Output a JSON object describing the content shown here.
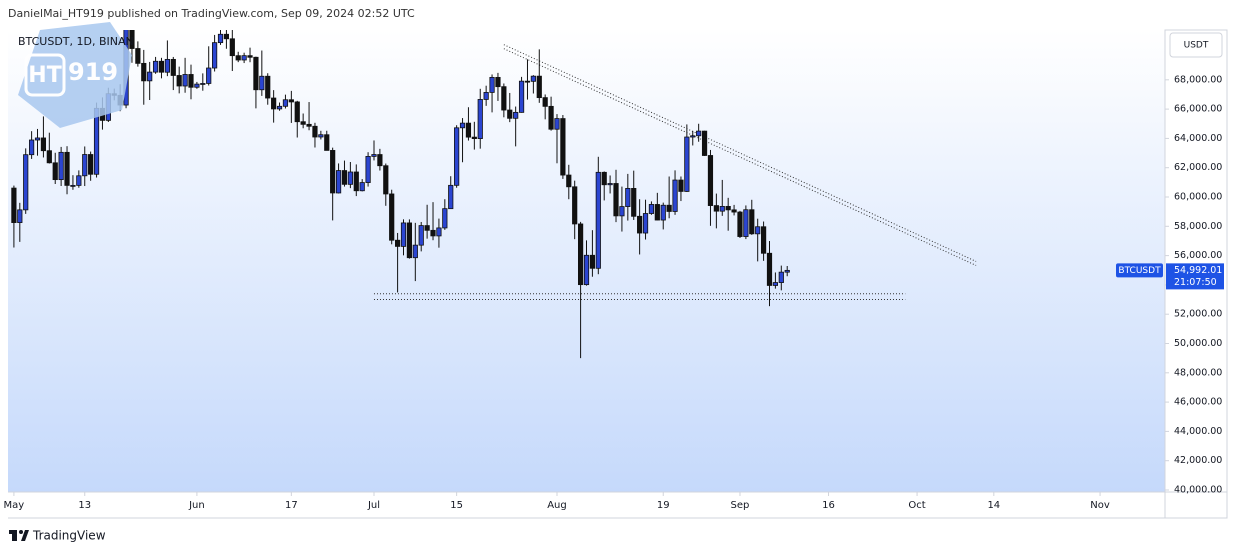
{
  "header": "DanielMai_HT919 published on TradingView.com, Sep 09, 2024 02:52 UTC",
  "footer": "TradingView",
  "logo_text": "919",
  "chart_data": {
    "type": "candlestick",
    "symbol": "BTCUSDT, 1D, BINAN",
    "currency": "USDT",
    "up_color": "#2b45d1",
    "down_color": "#111111",
    "grid": false,
    "ylim": [
      40000,
      71400
    ],
    "yticks": [
      {
        "value": 40000,
        "label": "40,000.00"
      },
      {
        "value": 42000,
        "label": "42,000.00"
      },
      {
        "value": 44000,
        "label": "44,000.00"
      },
      {
        "value": 46000,
        "label": "46,000.00"
      },
      {
        "value": 48000,
        "label": "48,000.00"
      },
      {
        "value": 50000,
        "label": "50,000.00"
      },
      {
        "value": 52000,
        "label": "52,000.00"
      },
      {
        "value": 54000,
        "label": "54,000.00"
      },
      {
        "value": 56000,
        "label": "56,000.00"
      },
      {
        "value": 58000,
        "label": "58,000.00"
      },
      {
        "value": 60000,
        "label": "60,000.00"
      },
      {
        "value": 62000,
        "label": "62,000.00"
      },
      {
        "value": 64000,
        "label": "64,000.00"
      },
      {
        "value": 66000,
        "label": "66,000.00"
      },
      {
        "value": 68000,
        "label": "68,000.00"
      }
    ],
    "xlim": [
      "2024-04-30",
      "2024-11-12"
    ],
    "xticks": [
      {
        "value": "2024-05-01",
        "label": "May"
      },
      {
        "value": "2024-05-13",
        "label": "13"
      },
      {
        "value": "2024-06-01",
        "label": "Jun"
      },
      {
        "value": "2024-06-17",
        "label": "17"
      },
      {
        "value": "2024-07-01",
        "label": "Jul"
      },
      {
        "value": "2024-07-15",
        "label": "15"
      },
      {
        "value": "2024-08-01",
        "label": "Aug"
      },
      {
        "value": "2024-08-19",
        "label": "19"
      },
      {
        "value": "2024-09-01",
        "label": "Sep"
      },
      {
        "value": "2024-09-16",
        "label": "16"
      },
      {
        "value": "2024-10-01",
        "label": "Oct"
      },
      {
        "value": "2024-10-14",
        "label": "14"
      },
      {
        "value": "2024-11-01",
        "label": "Nov"
      }
    ],
    "last_price": {
      "symbol": "BTCUSDT",
      "value": 54992.01,
      "label": "54,992.01",
      "countdown": "21:07:50"
    },
    "trendline": {
      "x": [
        "2024-07-23",
        "2024-10-11"
      ],
      "y": [
        70400,
        55600
      ]
    },
    "support": {
      "x": [
        "2024-07-01",
        "2024-09-29"
      ],
      "y": [
        53400,
        53000
      ]
    },
    "x": [
      "2024-05-01",
      "2024-05-02",
      "2024-05-03",
      "2024-05-04",
      "2024-05-05",
      "2024-05-06",
      "2024-05-07",
      "2024-05-08",
      "2024-05-09",
      "2024-05-10",
      "2024-05-11",
      "2024-05-12",
      "2024-05-13",
      "2024-05-14",
      "2024-05-15",
      "2024-05-16",
      "2024-05-17",
      "2024-05-18",
      "2024-05-19",
      "2024-05-20",
      "2024-05-21",
      "2024-05-22",
      "2024-05-23",
      "2024-05-24",
      "2024-05-25",
      "2024-05-26",
      "2024-05-27",
      "2024-05-28",
      "2024-05-29",
      "2024-05-30",
      "2024-05-31",
      "2024-06-01",
      "2024-06-02",
      "2024-06-03",
      "2024-06-04",
      "2024-06-05",
      "2024-06-06",
      "2024-06-07",
      "2024-06-08",
      "2024-06-09",
      "2024-06-10",
      "2024-06-11",
      "2024-06-12",
      "2024-06-13",
      "2024-06-14",
      "2024-06-15",
      "2024-06-16",
      "2024-06-17",
      "2024-06-18",
      "2024-06-19",
      "2024-06-20",
      "2024-06-21",
      "2024-06-22",
      "2024-06-23",
      "2024-06-24",
      "2024-06-25",
      "2024-06-26",
      "2024-06-27",
      "2024-06-28",
      "2024-06-29",
      "2024-06-30",
      "2024-07-01",
      "2024-07-02",
      "2024-07-03",
      "2024-07-04",
      "2024-07-05",
      "2024-07-06",
      "2024-07-07",
      "2024-07-08",
      "2024-07-09",
      "2024-07-10",
      "2024-07-11",
      "2024-07-12",
      "2024-07-13",
      "2024-07-14",
      "2024-07-15",
      "2024-07-16",
      "2024-07-17",
      "2024-07-18",
      "2024-07-19",
      "2024-07-20",
      "2024-07-21",
      "2024-07-22",
      "2024-07-23",
      "2024-07-24",
      "2024-07-25",
      "2024-07-26",
      "2024-07-27",
      "2024-07-28",
      "2024-07-29",
      "2024-07-30",
      "2024-07-31",
      "2024-08-01",
      "2024-08-02",
      "2024-08-03",
      "2024-08-04",
      "2024-08-05",
      "2024-08-06",
      "2024-08-07",
      "2024-08-08",
      "2024-08-09",
      "2024-08-10",
      "2024-08-11",
      "2024-08-12",
      "2024-08-13",
      "2024-08-14",
      "2024-08-15",
      "2024-08-16",
      "2024-08-17",
      "2024-08-18",
      "2024-08-19",
      "2024-08-20",
      "2024-08-21",
      "2024-08-22",
      "2024-08-23",
      "2024-08-24",
      "2024-08-25",
      "2024-08-26",
      "2024-08-27",
      "2024-08-28",
      "2024-08-29",
      "2024-08-30",
      "2024-08-31",
      "2024-09-01",
      "2024-09-02",
      "2024-09-03",
      "2024-09-04",
      "2024-09-05",
      "2024-09-06",
      "2024-09-07",
      "2024-09-08",
      "2024-09-09"
    ],
    "ohlc": [
      [
        60609,
        60780,
        56552,
        58254
      ],
      [
        58254,
        59602,
        56937,
        59123
      ],
      [
        59123,
        63320,
        58848,
        62889
      ],
      [
        62889,
        64494,
        62599,
        63891
      ],
      [
        63891,
        64646,
        62822,
        64031
      ],
      [
        64031,
        65500,
        62700,
        63161
      ],
      [
        63161,
        64390,
        62285,
        62334
      ],
      [
        62334,
        63020,
        60888,
        61187
      ],
      [
        61187,
        63420,
        60750,
        63049
      ],
      [
        63049,
        63469,
        60187,
        60793
      ],
      [
        60793,
        61490,
        60492,
        60793
      ],
      [
        60793,
        61818,
        60632,
        61448
      ],
      [
        61448,
        63450,
        60749,
        62901
      ],
      [
        62901,
        63102,
        61108,
        61552
      ],
      [
        61552,
        66444,
        61330,
        66054
      ],
      [
        66054,
        66800,
        64600,
        65231
      ],
      [
        65231,
        67459,
        65119,
        67051
      ],
      [
        67051,
        67400,
        66600,
        66940
      ],
      [
        66940,
        67700,
        65857,
        66278
      ],
      [
        66278,
        71515,
        66060,
        71446
      ],
      [
        71446,
        71979,
        69162,
        70136
      ],
      [
        70136,
        70623,
        68900,
        69122
      ],
      [
        69122,
        70041,
        66300,
        67929
      ],
      [
        67929,
        69220,
        66622,
        68526
      ],
      [
        68526,
        69563,
        68410,
        69265
      ],
      [
        69265,
        69500,
        68100,
        68518
      ],
      [
        68518,
        70687,
        68250,
        69394
      ],
      [
        69394,
        69560,
        67300,
        68296
      ],
      [
        68296,
        68900,
        67075,
        67578
      ],
      [
        67578,
        69500,
        67118,
        68364
      ],
      [
        68364,
        69036,
        66670,
        67491
      ],
      [
        67491,
        67856,
        67387,
        67706
      ],
      [
        67706,
        68439,
        67256,
        67751
      ],
      [
        67751,
        70288,
        67612,
        68805
      ],
      [
        68805,
        71063,
        68567,
        70537
      ],
      [
        70537,
        71758,
        70383,
        71108
      ],
      [
        71108,
        71625,
        70119,
        70800
      ],
      [
        70800,
        71997,
        68600,
        69648
      ],
      [
        69648,
        69914,
        69206,
        69352
      ],
      [
        69352,
        69850,
        69143,
        69649
      ],
      [
        69649,
        70195,
        69200,
        69538
      ],
      [
        69538,
        69580,
        66051,
        67321
      ],
      [
        67321,
        69999,
        66902,
        68243
      ],
      [
        68243,
        68449,
        66300,
        66756
      ],
      [
        66756,
        67296,
        65078,
        66012
      ],
      [
        66012,
        66450,
        65888,
        66192
      ],
      [
        66192,
        66988,
        66042,
        66639
      ],
      [
        66639,
        67244,
        65056,
        66490
      ],
      [
        66490,
        66565,
        64060,
        65140
      ],
      [
        65140,
        65700,
        64693,
        64960
      ],
      [
        64960,
        66482,
        64557,
        64828
      ],
      [
        64828,
        65066,
        63379,
        64096
      ],
      [
        64096,
        64520,
        63929,
        64252
      ],
      [
        64252,
        64523,
        63178,
        63180
      ],
      [
        63180,
        63369,
        58402,
        60277
      ],
      [
        60277,
        62292,
        60239,
        61806
      ],
      [
        61806,
        62487,
        60712,
        60864
      ],
      [
        60864,
        62389,
        60606,
        61707
      ],
      [
        61707,
        62225,
        60063,
        60427
      ],
      [
        60427,
        61224,
        60383,
        60986
      ],
      [
        60986,
        63058,
        60712,
        62772
      ],
      [
        62772,
        63861,
        62497,
        62899
      ],
      [
        62899,
        63288,
        61806,
        62135
      ],
      [
        62135,
        62285,
        59400,
        60208
      ],
      [
        60208,
        60498,
        56771,
        57050
      ],
      [
        57050,
        57546,
        53485,
        56628
      ],
      [
        56628,
        58475,
        56018,
        58231
      ],
      [
        58231,
        58472,
        55793,
        55857
      ],
      [
        55857,
        58236,
        54260,
        56714
      ],
      [
        56714,
        58296,
        56289,
        58050
      ],
      [
        58050,
        59470,
        57157,
        57725
      ],
      [
        57725,
        59650,
        57050,
        57344
      ],
      [
        57344,
        58526,
        56542,
        57889
      ],
      [
        57889,
        59850,
        57756,
        59204
      ],
      [
        59204,
        61420,
        59208,
        60797
      ],
      [
        60797,
        64900,
        60632,
        64724
      ],
      [
        64724,
        65388,
        62373,
        65043
      ],
      [
        65043,
        66128,
        63854,
        64087
      ],
      [
        64087,
        65133,
        63238,
        63987
      ],
      [
        63987,
        67386,
        63300,
        66660
      ],
      [
        66660,
        67598,
        66222,
        67139
      ],
      [
        67139,
        68366,
        65777,
        68165
      ],
      [
        68165,
        68474,
        66559,
        67532
      ],
      [
        67532,
        67750,
        65441,
        65936
      ],
      [
        65936,
        67102,
        65111,
        65372
      ],
      [
        65372,
        66175,
        63456,
        65777
      ],
      [
        65777,
        68200,
        65756,
        67907
      ],
      [
        67907,
        69399,
        66650,
        67896
      ],
      [
        67896,
        68318,
        67066,
        68249
      ],
      [
        68249,
        70079,
        66428,
        66784
      ],
      [
        66784,
        67000,
        65302,
        66188
      ],
      [
        66188,
        66849,
        64530,
        64628
      ],
      [
        64628,
        65659,
        62302,
        65354
      ],
      [
        65354,
        65596,
        61236,
        61498
      ],
      [
        61498,
        62198,
        59850,
        60697
      ],
      [
        60697,
        61117,
        57122,
        58161
      ],
      [
        58161,
        58305,
        49000,
        54018
      ],
      [
        54018,
        57040,
        53950,
        56022
      ],
      [
        56022,
        57736,
        54558,
        55134
      ],
      [
        55134,
        62745,
        54730,
        61685
      ],
      [
        61685,
        61744,
        59767,
        60837
      ],
      [
        60837,
        61470,
        60242,
        60923
      ],
      [
        60923,
        61858,
        58286,
        58712
      ],
      [
        58712,
        60711,
        57642,
        59346
      ],
      [
        59346,
        61578,
        58392,
        60587
      ],
      [
        60587,
        61800,
        58433,
        58683
      ],
      [
        58683,
        59849,
        56078,
        57541
      ],
      [
        57541,
        59817,
        57098,
        58874
      ],
      [
        58874,
        59700,
        58785,
        59491
      ],
      [
        59491,
        60284,
        58408,
        58427
      ],
      [
        58427,
        59617,
        57787,
        59438
      ],
      [
        59438,
        61400,
        58548,
        59013
      ],
      [
        59013,
        61820,
        58783,
        61157
      ],
      [
        61157,
        61400,
        59724,
        60381
      ],
      [
        60381,
        64955,
        60345,
        64094
      ],
      [
        64094,
        64513,
        63519,
        64178
      ],
      [
        64178,
        65000,
        63773,
        64498
      ],
      [
        64498,
        64522,
        62800,
        62834
      ],
      [
        62834,
        63212,
        58034,
        59415
      ],
      [
        59415,
        60234,
        57860,
        59034
      ],
      [
        59034,
        61166,
        58713,
        59359
      ],
      [
        59359,
        59944,
        57700,
        59123
      ],
      [
        59123,
        59462,
        58744,
        58973
      ],
      [
        58973,
        59054,
        57201,
        57301
      ],
      [
        57301,
        59425,
        57128,
        59132
      ],
      [
        59132,
        59809,
        57415,
        57487
      ],
      [
        57487,
        58519,
        55606,
        57970
      ],
      [
        57970,
        58327,
        55643,
        56160
      ],
      [
        56160,
        56995,
        52550,
        53962
      ],
      [
        53962,
        54850,
        53745,
        54160
      ],
      [
        54160,
        55318,
        53629,
        54870
      ],
      [
        54870,
        55290,
        54593,
        54992.01
      ]
    ]
  }
}
